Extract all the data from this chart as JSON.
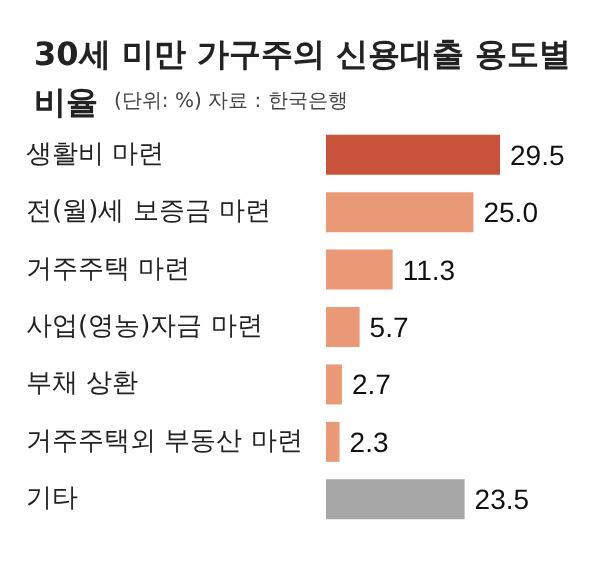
{
  "chart_data": {
    "type": "bar",
    "orientation": "horizontal",
    "title": "30세 미만 가구주의 신용대출 용도별\n비율",
    "subtitle": "(단위: %) 자료 : 한국은행",
    "categories": [
      "생활비 마련",
      "전(월)세 보증금 마련",
      "거주주택 마련",
      "사업(영농)자금 마련",
      "부채 상환",
      "거주주택외 부동산 마련",
      "기타"
    ],
    "values": [
      29.5,
      25.0,
      11.3,
      5.7,
      2.7,
      2.3,
      23.5
    ],
    "colors": [
      "#c8523a",
      "#eb9a78",
      "#eb9a78",
      "#eb9a78",
      "#eb9a78",
      "#eb9a78",
      "#a6a6a6"
    ],
    "value_labels": [
      "29.5",
      "25.0",
      "11.3",
      "5.7",
      "2.7",
      "2.3",
      "23.5"
    ]
  }
}
